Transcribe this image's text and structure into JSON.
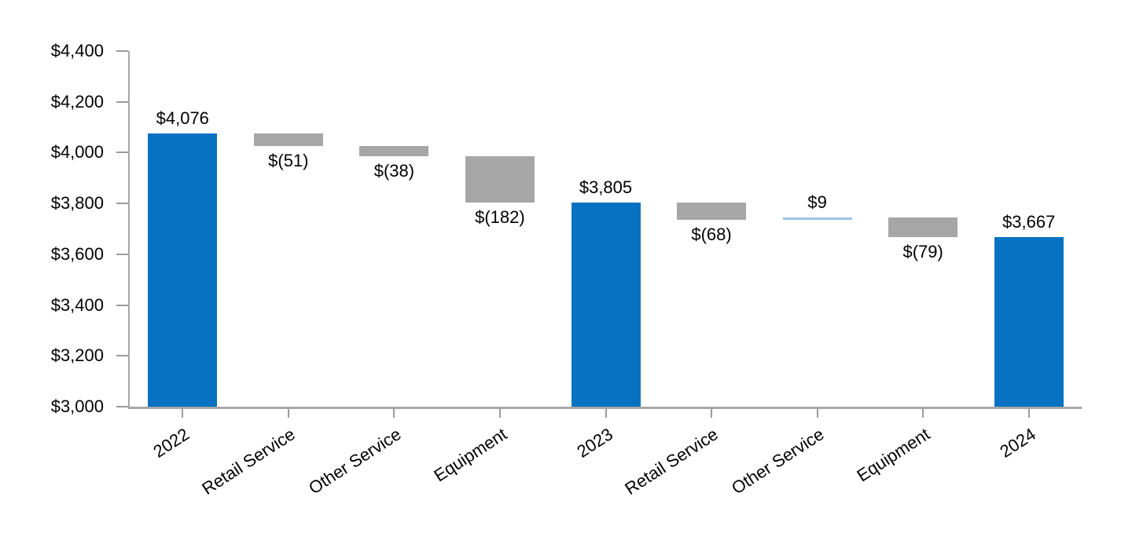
{
  "chart_data": {
    "type": "bar",
    "subtype": "waterfall",
    "title": "",
    "xlabel": "",
    "ylabel": "",
    "grid": "off",
    "legend": "none",
    "x_label_rotation_deg": -33,
    "categories": [
      "2022",
      "Retail Service",
      "Other Service",
      "Equipment",
      "2023",
      "Retail Service",
      "Other Service",
      "Equipment",
      "2024"
    ],
    "points": [
      {
        "label": "2022",
        "kind": "total",
        "value": 4076,
        "data_label": "$4,076"
      },
      {
        "label": "Retail Service",
        "kind": "delta",
        "value": -51,
        "data_label": "$(51)"
      },
      {
        "label": "Other Service",
        "kind": "delta",
        "value": -38,
        "data_label": "$(38)"
      },
      {
        "label": "Equipment",
        "kind": "delta",
        "value": -182,
        "data_label": "$(182)"
      },
      {
        "label": "2023",
        "kind": "total",
        "value": 3805,
        "data_label": "$3,805"
      },
      {
        "label": "Retail Service",
        "kind": "delta",
        "value": -68,
        "data_label": "$(68)"
      },
      {
        "label": "Other Service",
        "kind": "delta",
        "value": 9,
        "data_label": "$9"
      },
      {
        "label": "Equipment",
        "kind": "delta",
        "value": -79,
        "data_label": "$(79)"
      },
      {
        "label": "2024",
        "kind": "total",
        "value": 3667,
        "data_label": "$3,667"
      }
    ],
    "y_axis": {
      "min": 3000,
      "max": 4400,
      "step": 200,
      "tick_labels": [
        "$3,000",
        "$3,200",
        "$3,400",
        "$3,600",
        "$3,800",
        "$4,000",
        "$4,200",
        "$4,400"
      ]
    },
    "colors": {
      "total_bar": "#0772C1",
      "decrease_bar": "#A6A6A6",
      "increase_bar": "#9DC3E6",
      "axis_line": "#A6A6A6",
      "tick_mark": "#9B9B9B",
      "label_text": "#000000"
    }
  }
}
